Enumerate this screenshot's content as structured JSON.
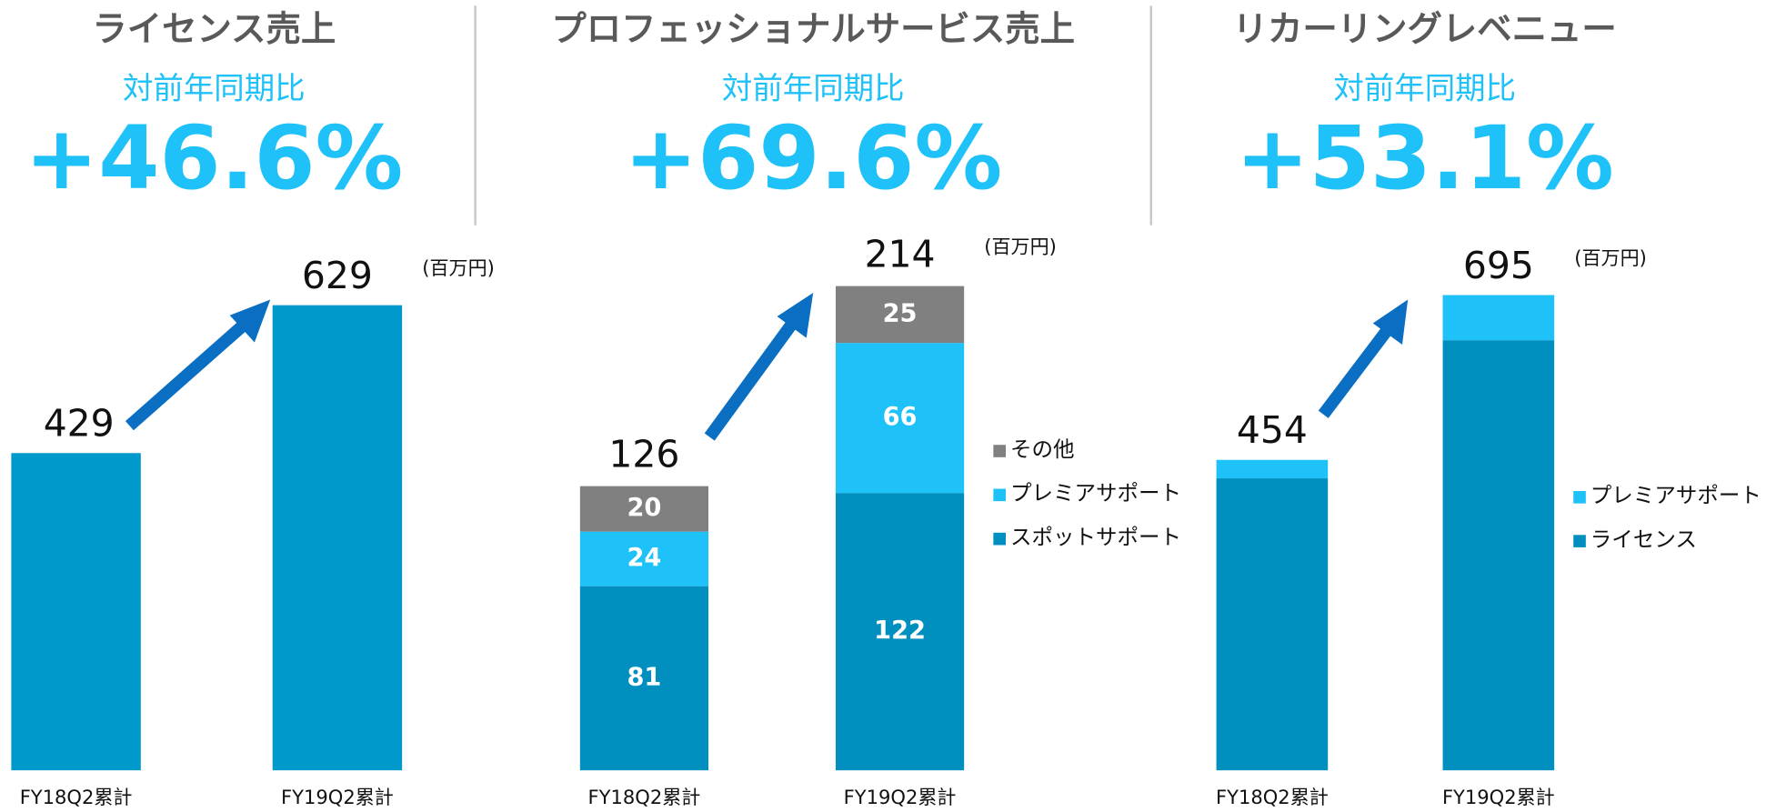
{
  "chart_data": [
    {
      "type": "bar",
      "title": "ライセンス売上",
      "subtitle": "対前年同期比",
      "change": "+46.6%",
      "unit": "(百万円)",
      "categories": [
        "FY18Q2累計",
        "FY19Q2累計"
      ],
      "values": [
        429,
        629
      ],
      "color": "#0099cc"
    },
    {
      "type": "stacked_bar",
      "title": "プロフェッショナルサービス売上",
      "subtitle": "対前年同期比",
      "change": "+69.6%",
      "unit": "(百万円)",
      "categories": [
        "FY18Q2累計",
        "FY19Q2累計"
      ],
      "series": [
        {
          "name": "スポットサポート",
          "color": "#008fbf",
          "values": [
            81,
            122
          ]
        },
        {
          "name": "プレミアサポート",
          "color": "#1ec1f8",
          "values": [
            24,
            66
          ]
        },
        {
          "name": "その他",
          "color": "#808080",
          "values": [
            20,
            25
          ]
        }
      ],
      "totals": [
        126,
        214
      ],
      "show_values": true
    },
    {
      "type": "stacked_bar",
      "title": "リカーリングレベニュー",
      "subtitle": "対前年同期比",
      "change": "+53.1%",
      "unit": "(百万円)",
      "categories": [
        "FY18Q2累計",
        "FY19Q2累計"
      ],
      "series": [
        {
          "name": "ライセンス",
          "color": "#008fbf",
          "values": [
            427,
            629
          ]
        },
        {
          "name": "プレミアサポート",
          "color": "#1ec1f8",
          "values": [
            27,
            66
          ]
        }
      ],
      "totals": [
        454,
        695
      ],
      "show_values": false
    }
  ]
}
